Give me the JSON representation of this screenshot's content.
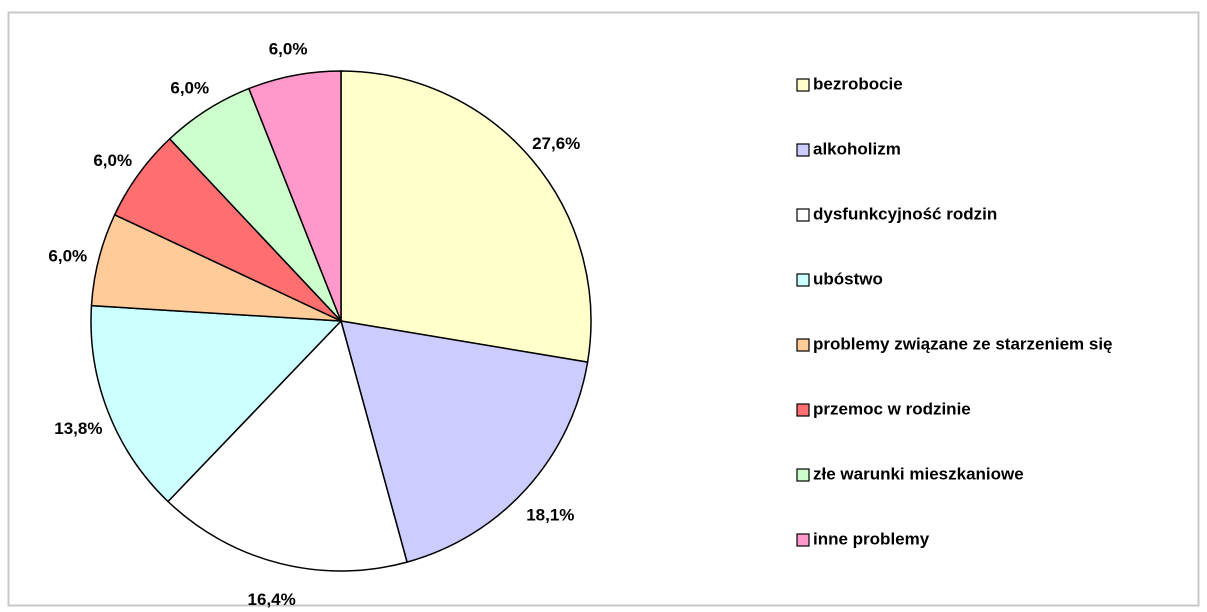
{
  "chart_data": {
    "type": "pie",
    "categories": [
      "bezrobocie",
      "alkoholizm",
      "dysfunkcyjność rodzin",
      "ubóstwo",
      "problemy związane ze starzeniem się",
      "przemoc w rodzinie",
      "złe warunki mieszkaniowe",
      "inne problemy"
    ],
    "values": [
      27.6,
      18.1,
      16.4,
      13.8,
      6.0,
      6.0,
      6.0,
      6.0
    ],
    "value_labels": [
      "27,6%",
      "18,1%",
      "16,4%",
      "13,8%",
      "6,0%",
      "6,0%",
      "6,0%",
      "6,0%"
    ],
    "colors": [
      "#FFFFCC",
      "#CCCCFF",
      "#FFFFFF",
      "#CCFFFF",
      "#FFCC99",
      "#FF6F6F",
      "#CCFFCC",
      "#FF99CC"
    ],
    "legend": "right"
  }
}
